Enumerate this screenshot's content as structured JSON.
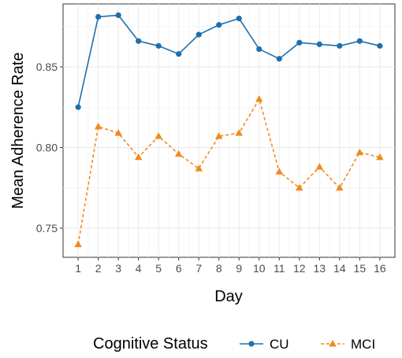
{
  "chart_data": {
    "type": "line",
    "title": "",
    "xlabel": "Day",
    "ylabel": "Mean Adherence Rate",
    "x": [
      1,
      2,
      3,
      4,
      5,
      6,
      7,
      8,
      9,
      10,
      11,
      12,
      13,
      14,
      15,
      16
    ],
    "x_tick_labels": [
      "1",
      "2",
      "3",
      "4",
      "5",
      "6",
      "7",
      "8",
      "9",
      "10",
      "11",
      "12",
      "13",
      "14",
      "15",
      "16"
    ],
    "y_ticks": [
      0.75,
      0.8,
      0.85
    ],
    "y_tick_labels": [
      "0.75",
      "0.80",
      "0.85"
    ],
    "xlim": [
      0.25,
      16.75
    ],
    "ylim": [
      0.732,
      0.889
    ],
    "grid": true,
    "legend": {
      "title": "Cognitive Status",
      "position": "bottom"
    },
    "series": [
      {
        "name": "CU",
        "color": "#1f6fad",
        "line_style": "solid",
        "marker": "circle",
        "values": [
          0.825,
          0.881,
          0.882,
          0.866,
          0.863,
          0.858,
          0.87,
          0.876,
          0.88,
          0.861,
          0.855,
          0.865,
          0.864,
          0.863,
          0.866,
          0.863
        ]
      },
      {
        "name": "MCI",
        "color": "#f08a1e",
        "line_style": "dashed",
        "marker": "triangle",
        "values": [
          0.74,
          0.813,
          0.809,
          0.794,
          0.807,
          0.796,
          0.787,
          0.807,
          0.809,
          0.83,
          0.785,
          0.775,
          0.788,
          0.775,
          0.797,
          0.794
        ]
      }
    ]
  }
}
